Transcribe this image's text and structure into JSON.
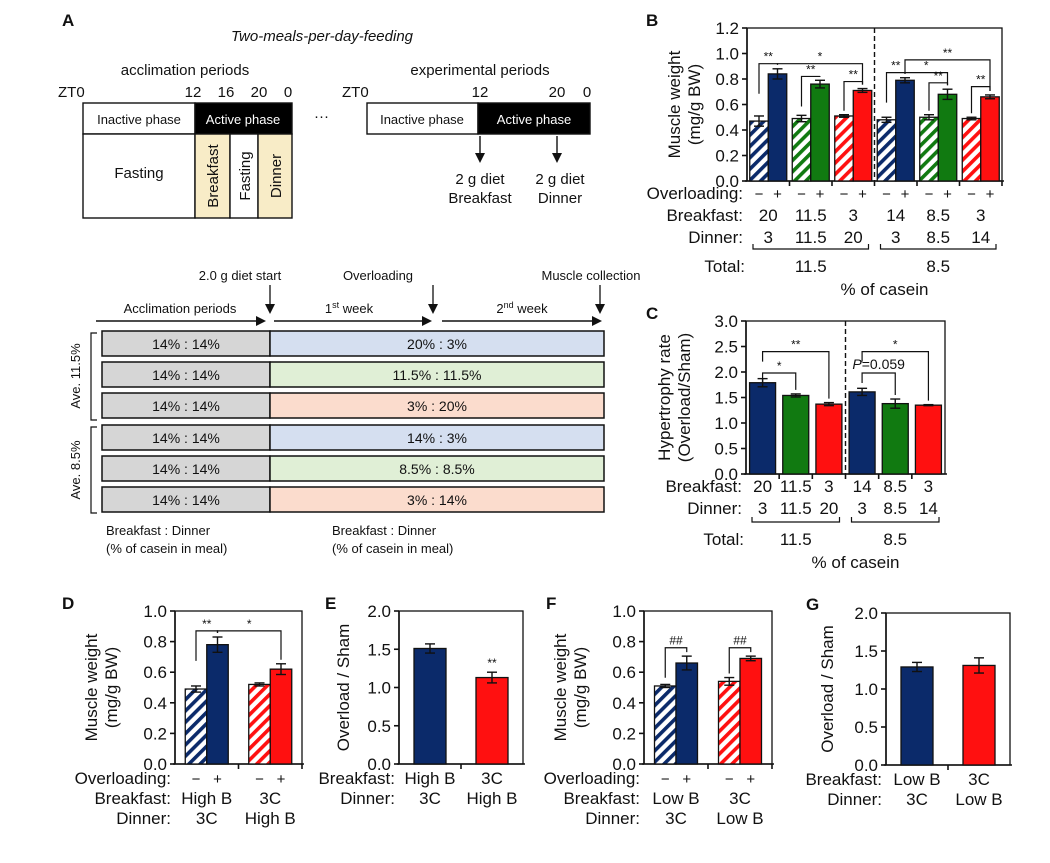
{
  "colors": {
    "navy": "#0b2a6a",
    "green": "#117a11",
    "red": "#ff1010",
    "cream": "#f8ecc7",
    "gray_cell": "#d6d6d6",
    "blue_cell": "#d5dff0",
    "green_cell": "#e0efd6",
    "peach_cell": "#fbdccd"
  },
  "panelA": {
    "label": "A",
    "title": "Two-meals-per-day-feeding",
    "acclimation": {
      "heading": "acclimation periods",
      "zt_start": "ZT0",
      "ticks": [
        "12",
        "16",
        "20",
        "0"
      ],
      "inactive": "Inactive phase",
      "active": "Active phase",
      "fasting1": "Fasting",
      "breakfast": "Breakfast",
      "fasting2": "Fasting",
      "dinner": "Dinner"
    },
    "ellipsis": "···",
    "experimental": {
      "heading": "experimental periods",
      "zt_start": "ZT0",
      "ticks": [
        "12",
        "20",
        "0"
      ],
      "inactive": "Inactive phase",
      "active": "Active phase",
      "meal1_line1": "2 g diet",
      "meal1_line2": "Breakfast",
      "meal2_line1": "2 g diet",
      "meal2_line2": "Dinner"
    },
    "timeline": {
      "event_diet_start": "2.0 g diet start",
      "event_overloading": "Overloading",
      "event_collection": "Muscle collection",
      "period_acclimation": "Acclimation periods",
      "week1_num": "1",
      "week1_sup": "st",
      "week1_word": " week",
      "week2_num": "2",
      "week2_sup": "nd",
      "week2_word": " week",
      "group1": "Ave. 11.5%",
      "group2": "Ave. 8.5%",
      "rows": [
        {
          "acclimation": "14% : 14%",
          "experimental": "20% : 3%",
          "tone": "blue"
        },
        {
          "acclimation": "14% : 14%",
          "experimental": "11.5% : 11.5%",
          "tone": "green"
        },
        {
          "acclimation": "14% : 14%",
          "experimental": "3% : 20%",
          "tone": "peach"
        },
        {
          "acclimation": "14% : 14%",
          "experimental": "14% : 3%",
          "tone": "blue"
        },
        {
          "acclimation": "14% : 14%",
          "experimental": "8.5% : 8.5%",
          "tone": "green"
        },
        {
          "acclimation": "14% : 14%",
          "experimental": "3% : 14%",
          "tone": "peach"
        }
      ],
      "footer_left_1": "Breakfast : Dinner",
      "footer_left_2": "(% of casein in meal)",
      "footer_right_1": "Breakfast : Dinner",
      "footer_right_2": "(% of casein in meal)"
    }
  },
  "chart_data": [
    {
      "panel": "B",
      "type": "bar",
      "ylabel_line1": "Muscle weight",
      "ylabel_line2": "(mg/g BW)",
      "ylim": [
        0,
        1.2
      ],
      "yticks": [
        "0.0",
        "0.2",
        "0.4",
        "0.6",
        "0.8",
        "1.0",
        "1.2"
      ],
      "ytick_values": [
        0,
        0.2,
        0.4,
        0.6,
        0.8,
        1.0,
        1.2
      ],
      "row_labels": [
        "Overloading:",
        "Breakfast:",
        "Dinner:"
      ],
      "total_label": "Total:",
      "totals": [
        "11.5",
        "8.5"
      ],
      "xlabel": "% of casein",
      "groups": [
        {
          "breakfast": "20",
          "dinner": "3",
          "color": "navy",
          "bars": [
            {
              "overloading": "−",
              "value": 0.47,
              "err": 0.04,
              "hatched": true
            },
            {
              "overloading": "+",
              "value": 0.84,
              "err": 0.04,
              "hatched": false
            }
          ]
        },
        {
          "breakfast": "11.5",
          "dinner": "11.5",
          "color": "green",
          "bars": [
            {
              "overloading": "−",
              "value": 0.49,
              "err": 0.025,
              "hatched": true
            },
            {
              "overloading": "+",
              "value": 0.76,
              "err": 0.03,
              "hatched": false
            }
          ]
        },
        {
          "breakfast": "3",
          "dinner": "20",
          "color": "red",
          "bars": [
            {
              "overloading": "−",
              "value": 0.51,
              "err": 0.01,
              "hatched": true
            },
            {
              "overloading": "+",
              "value": 0.71,
              "err": 0.015,
              "hatched": false
            }
          ]
        },
        {
          "breakfast": "14",
          "dinner": "3",
          "color": "navy",
          "bars": [
            {
              "overloading": "−",
              "value": 0.48,
              "err": 0.02,
              "hatched": true
            },
            {
              "overloading": "+",
              "value": 0.79,
              "err": 0.02,
              "hatched": false
            }
          ]
        },
        {
          "breakfast": "8.5",
          "dinner": "8.5",
          "color": "green",
          "bars": [
            {
              "overloading": "−",
              "value": 0.5,
              "err": 0.02,
              "hatched": true
            },
            {
              "overloading": "+",
              "value": 0.68,
              "err": 0.04,
              "hatched": false
            }
          ]
        },
        {
          "breakfast": "3",
          "dinner": "14",
          "color": "red",
          "bars": [
            {
              "overloading": "−",
              "value": 0.49,
              "err": 0.01,
              "hatched": true
            },
            {
              "overloading": "+",
              "value": 0.66,
              "err": 0.015,
              "hatched": false
            }
          ]
        }
      ],
      "annotations": [
        {
          "from": [
            0,
            0
          ],
          "to": [
            0,
            1
          ],
          "label": "**",
          "level": 0.92
        },
        {
          "from": [
            0,
            1
          ],
          "to": [
            2,
            1
          ],
          "label": "*",
          "level": 0.92
        },
        {
          "from": [
            1,
            0
          ],
          "to": [
            1,
            1
          ],
          "label": "**",
          "level": 0.82
        },
        {
          "from": [
            2,
            0
          ],
          "to": [
            2,
            1
          ],
          "label": "**",
          "level": 0.78
        },
        {
          "from": [
            3,
            0
          ],
          "to": [
            3,
            1
          ],
          "label": "**",
          "level": 0.85
        },
        {
          "from": [
            3,
            1
          ],
          "to": [
            4,
            1
          ],
          "label": "*",
          "level": 0.85
        },
        {
          "from": [
            3,
            1
          ],
          "to": [
            5,
            1
          ],
          "label": "**",
          "level": 0.95
        },
        {
          "from": [
            4,
            0
          ],
          "to": [
            4,
            1
          ],
          "label": "**",
          "level": 0.77
        },
        {
          "from": [
            5,
            0
          ],
          "to": [
            5,
            1
          ],
          "label": "**",
          "level": 0.74
        }
      ],
      "divider_after_group": 2
    },
    {
      "panel": "C",
      "type": "bar",
      "ylabel_line1": "Hypertrophy rate",
      "ylabel_line2": "(Overload/Sham)",
      "ylim": [
        0,
        3.0
      ],
      "yticks": [
        "0.0",
        "0.5",
        "1.0",
        "1.5",
        "2.0",
        "2.5",
        "3.0"
      ],
      "ytick_values": [
        0,
        0.5,
        1.0,
        1.5,
        2.0,
        2.5,
        3.0
      ],
      "row_labels": [
        "Breakfast:",
        "Dinner:"
      ],
      "total_label": "Total:",
      "totals": [
        "11.5",
        "8.5"
      ],
      "xlabel": "% of casein",
      "categories": [
        {
          "breakfast": "20",
          "dinner": "3"
        },
        {
          "breakfast": "11.5",
          "dinner": "11.5"
        },
        {
          "breakfast": "3",
          "dinner": "20"
        },
        {
          "breakfast": "14",
          "dinner": "3"
        },
        {
          "breakfast": "8.5",
          "dinner": "8.5"
        },
        {
          "breakfast": "3",
          "dinner": "14"
        }
      ],
      "values": [
        1.79,
        1.54,
        1.37,
        1.61,
        1.38,
        1.35
      ],
      "errors": [
        0.08,
        0.03,
        0.03,
        0.07,
        0.09,
        0.01
      ],
      "bar_colors": [
        "navy",
        "green",
        "red",
        "navy",
        "green",
        "red"
      ],
      "annotations": [
        {
          "from": 0,
          "to": 1,
          "label": "*",
          "level": 1.98
        },
        {
          "from": 0,
          "to": 2,
          "label": "**",
          "level": 2.4
        },
        {
          "from": 3,
          "to": 4,
          "label": "P=0.059",
          "level": 1.98,
          "italic_prefix": "P"
        },
        {
          "from": 3,
          "to": 5,
          "label": "*",
          "level": 2.4
        }
      ],
      "divider_after": 2
    },
    {
      "panel": "D",
      "type": "bar",
      "ylabel_line1": "Muscle weight",
      "ylabel_line2": "(mg/g BW)",
      "ylim": [
        0,
        1.0
      ],
      "yticks": [
        "0.0",
        "0.2",
        "0.4",
        "0.6",
        "0.8",
        "1.0"
      ],
      "ytick_values": [
        0,
        0.2,
        0.4,
        0.6,
        0.8,
        1.0
      ],
      "row_labels": [
        "Overloading:",
        "Breakfast:",
        "Dinner:"
      ],
      "groups": [
        {
          "breakfast": "High B",
          "dinner": "3C",
          "color": "navy",
          "bars": [
            {
              "overloading": "−",
              "value": 0.49,
              "err": 0.02,
              "hatched": true
            },
            {
              "overloading": "+",
              "value": 0.78,
              "err": 0.05,
              "hatched": false
            }
          ]
        },
        {
          "breakfast": "3C",
          "dinner": "High B",
          "color": "red",
          "bars": [
            {
              "overloading": "−",
              "value": 0.52,
              "err": 0.01,
              "hatched": true
            },
            {
              "overloading": "+",
              "value": 0.62,
              "err": 0.035,
              "hatched": false
            }
          ]
        }
      ],
      "annotations": [
        {
          "from": [
            0,
            0
          ],
          "to": [
            0,
            1
          ],
          "label": "**",
          "level": 0.87
        },
        {
          "from": [
            0,
            1
          ],
          "to": [
            1,
            1
          ],
          "label": "*",
          "level": 0.87
        }
      ]
    },
    {
      "panel": "E",
      "type": "bar",
      "ylabel": "Overload / Sham",
      "ylim": [
        0,
        2.0
      ],
      "yticks": [
        "0.0",
        "0.5",
        "1.0",
        "1.5",
        "2.0"
      ],
      "ytick_values": [
        0,
        0.5,
        1.0,
        1.5,
        2.0
      ],
      "row_labels": [
        "Breakfast:",
        "Dinner:"
      ],
      "categories": [
        {
          "breakfast": "High B",
          "dinner": "3C"
        },
        {
          "breakfast": "3C",
          "dinner": "High B"
        }
      ],
      "values": [
        1.51,
        1.13
      ],
      "errors": [
        0.06,
        0.07
      ],
      "bar_colors": [
        "navy",
        "red"
      ],
      "marks": [
        "",
        "**"
      ]
    },
    {
      "panel": "F",
      "type": "bar",
      "ylabel_line1": "Muscle weight",
      "ylabel_line2": "(mg/g BW)",
      "ylim": [
        0,
        1.0
      ],
      "yticks": [
        "0.0",
        "0.2",
        "0.4",
        "0.6",
        "0.8",
        "1.0"
      ],
      "ytick_values": [
        0,
        0.2,
        0.4,
        0.6,
        0.8,
        1.0
      ],
      "row_labels": [
        "Overloading:",
        "Breakfast:",
        "Dinner:"
      ],
      "groups": [
        {
          "breakfast": "Low B",
          "dinner": "3C",
          "color": "navy",
          "bars": [
            {
              "overloading": "−",
              "value": 0.51,
              "err": 0.01,
              "hatched": true
            },
            {
              "overloading": "+",
              "value": 0.66,
              "err": 0.045,
              "hatched": false
            }
          ]
        },
        {
          "breakfast": "3C",
          "dinner": "Low B",
          "color": "red",
          "bars": [
            {
              "overloading": "−",
              "value": 0.54,
              "err": 0.025,
              "hatched": true
            },
            {
              "overloading": "+",
              "value": 0.69,
              "err": 0.015,
              "hatched": false
            }
          ]
        }
      ],
      "annotations": [
        {
          "from": [
            0,
            0
          ],
          "to": [
            0,
            1
          ],
          "label": "##",
          "level": 0.76
        },
        {
          "from": [
            1,
            0
          ],
          "to": [
            1,
            1
          ],
          "label": "##",
          "level": 0.76
        }
      ]
    },
    {
      "panel": "G",
      "type": "bar",
      "ylabel": "Overload / Sham",
      "ylim": [
        0,
        2.0
      ],
      "yticks": [
        "0.0",
        "0.5",
        "1.0",
        "1.5",
        "2.0"
      ],
      "ytick_values": [
        0,
        0.5,
        1.0,
        1.5,
        2.0
      ],
      "row_labels": [
        "Breakfast:",
        "Dinner:"
      ],
      "categories": [
        {
          "breakfast": "Low B",
          "dinner": "3C"
        },
        {
          "breakfast": "3C",
          "dinner": "Low B"
        }
      ],
      "values": [
        1.29,
        1.31
      ],
      "errors": [
        0.06,
        0.1
      ],
      "bar_colors": [
        "navy",
        "red"
      ],
      "marks": [
        "",
        ""
      ]
    }
  ]
}
